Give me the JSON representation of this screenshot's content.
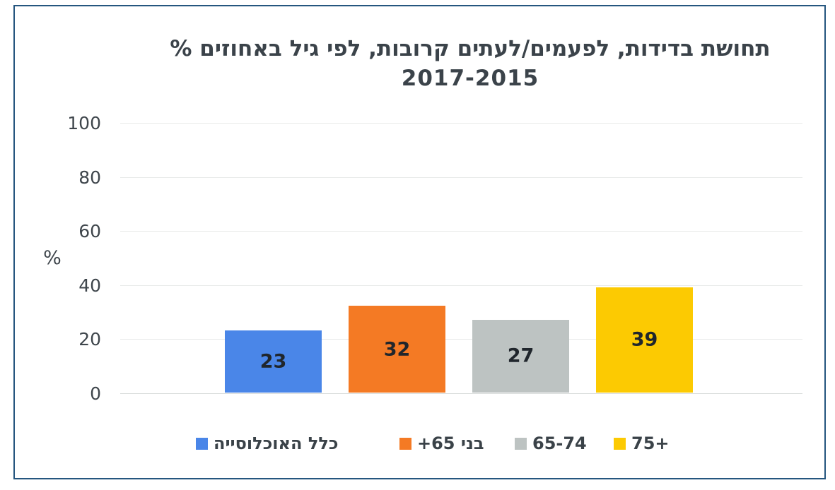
{
  "frame": {
    "border_color": "#25567f",
    "background": "#ffffff"
  },
  "chart_data": {
    "type": "bar",
    "title": "תחושת בדידות, לפעמים/לעתים קרובות, לפי גיל באחוזים %",
    "subtitle": "2017-2015",
    "ylabel": "%",
    "xlabel": "",
    "ylim": [
      0,
      100
    ],
    "yticks": [
      0,
      20,
      40,
      60,
      80,
      100
    ],
    "grid": true,
    "legend_position": "bottom",
    "categories": [
      "כלל האוכלוסייה",
      "בני 65+",
      "65-74",
      "75+"
    ],
    "values": [
      23,
      32,
      27,
      39
    ],
    "value_labels": [
      "23",
      "32",
      "27",
      "39"
    ],
    "colors": [
      "#4a86e8",
      "#f47a24",
      "#bdc3c2",
      "#fcca02"
    ],
    "text_color": "#3b434a",
    "gridline_color": "#e8eae9"
  }
}
